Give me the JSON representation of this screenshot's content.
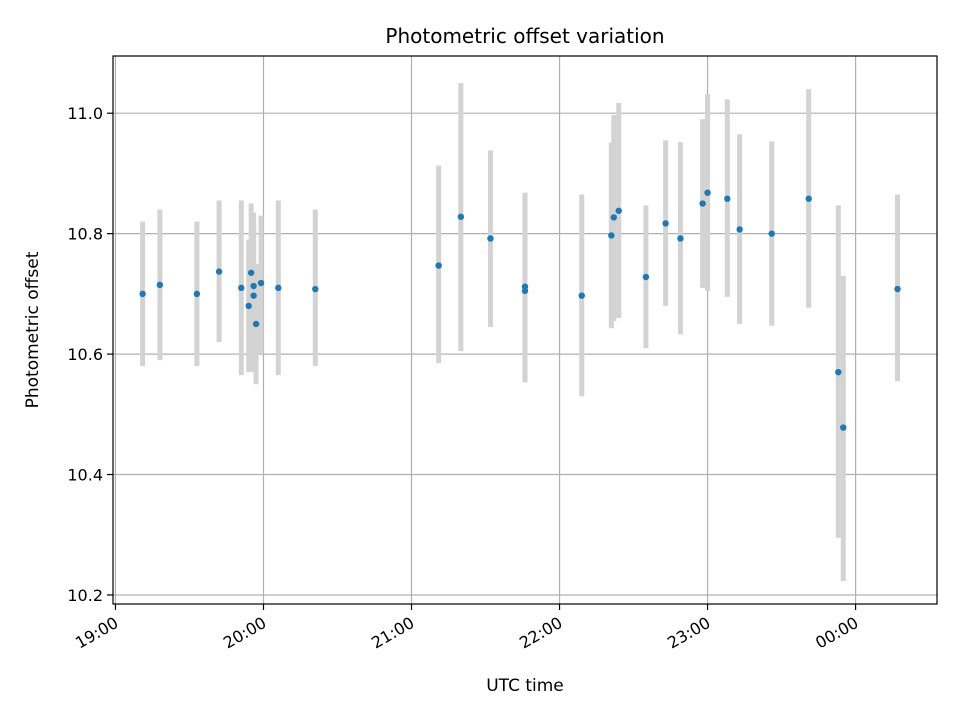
{
  "chart_data": {
    "type": "scatter",
    "title": "Photometric offset variation",
    "xlabel": "UTC time",
    "ylabel": "Photometric offset",
    "grid": true,
    "x_ticks": [
      "19:00",
      "20:00",
      "21:00",
      "22:00",
      "23:00",
      "00:00"
    ],
    "y_ticks": [
      "10.2",
      "10.4",
      "10.6",
      "10.8",
      "11.0"
    ],
    "xlim": [
      "19:00",
      "00:33"
    ],
    "ylim": [
      10.185,
      11.095
    ],
    "colors": {
      "points": "#1f77b4",
      "error_bars": "#d3d3d3",
      "grid": "#b0b0b0"
    },
    "points": [
      {
        "t": "19:11",
        "y": 10.7,
        "lo": 10.58,
        "hi": 10.82
      },
      {
        "t": "19:18",
        "y": 10.715,
        "lo": 10.59,
        "hi": 10.84
      },
      {
        "t": "19:33",
        "y": 10.7,
        "lo": 10.58,
        "hi": 10.82
      },
      {
        "t": "19:42",
        "y": 10.737,
        "lo": 10.62,
        "hi": 10.855
      },
      {
        "t": "19:51",
        "y": 10.71,
        "lo": 10.565,
        "hi": 10.855
      },
      {
        "t": "19:54",
        "y": 10.68,
        "lo": 10.57,
        "hi": 10.79
      },
      {
        "t": "19:55",
        "y": 10.735,
        "lo": 10.57,
        "hi": 10.85
      },
      {
        "t": "19:56",
        "y": 10.713,
        "lo": 10.59,
        "hi": 10.835
      },
      {
        "t": "19:56",
        "y": 10.697,
        "lo": 10.57,
        "hi": 10.82
      },
      {
        "t": "19:57",
        "y": 10.65,
        "lo": 10.55,
        "hi": 10.75
      },
      {
        "t": "19:59",
        "y": 10.718,
        "lo": 10.6,
        "hi": 10.83
      },
      {
        "t": "20:06",
        "y": 10.71,
        "lo": 10.565,
        "hi": 10.855
      },
      {
        "t": "20:21",
        "y": 10.708,
        "lo": 10.58,
        "hi": 10.84
      },
      {
        "t": "21:11",
        "y": 10.747,
        "lo": 10.585,
        "hi": 10.913
      },
      {
        "t": "21:20",
        "y": 10.828,
        "lo": 10.605,
        "hi": 11.05
      },
      {
        "t": "21:32",
        "y": 10.792,
        "lo": 10.645,
        "hi": 10.938
      },
      {
        "t": "21:46",
        "y": 10.705,
        "lo": 10.553,
        "hi": 10.857
      },
      {
        "t": "21:46",
        "y": 10.712,
        "lo": 10.556,
        "hi": 10.868
      },
      {
        "t": "22:09",
        "y": 10.697,
        "lo": 10.53,
        "hi": 10.865
      },
      {
        "t": "22:21",
        "y": 10.797,
        "lo": 10.643,
        "hi": 10.951
      },
      {
        "t": "22:22",
        "y": 10.827,
        "lo": 10.655,
        "hi": 10.997
      },
      {
        "t": "22:24",
        "y": 10.838,
        "lo": 10.66,
        "hi": 11.017
      },
      {
        "t": "22:35",
        "y": 10.728,
        "lo": 10.61,
        "hi": 10.847
      },
      {
        "t": "22:43",
        "y": 10.817,
        "lo": 10.68,
        "hi": 10.955
      },
      {
        "t": "22:49",
        "y": 10.792,
        "lo": 10.633,
        "hi": 10.952
      },
      {
        "t": "22:58",
        "y": 10.85,
        "lo": 10.71,
        "hi": 10.99
      },
      {
        "t": "23:00",
        "y": 10.868,
        "lo": 10.705,
        "hi": 11.032
      },
      {
        "t": "23:08",
        "y": 10.858,
        "lo": 10.695,
        "hi": 11.023
      },
      {
        "t": "23:13",
        "y": 10.807,
        "lo": 10.65,
        "hi": 10.965
      },
      {
        "t": "23:26",
        "y": 10.8,
        "lo": 10.647,
        "hi": 10.953
      },
      {
        "t": "23:41",
        "y": 10.858,
        "lo": 10.677,
        "hi": 11.04
      },
      {
        "t": "23:53",
        "y": 10.57,
        "lo": 10.295,
        "hi": 10.847
      },
      {
        "t": "23:55",
        "y": 10.478,
        "lo": 10.223,
        "hi": 10.73
      },
      {
        "t": "00:17",
        "y": 10.708,
        "lo": 10.555,
        "hi": 10.865
      }
    ]
  }
}
